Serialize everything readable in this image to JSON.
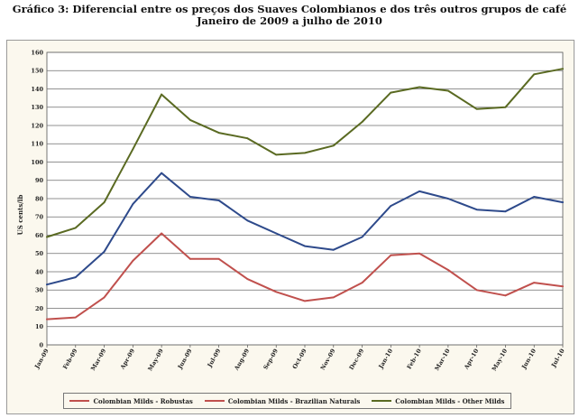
{
  "chart_data": {
    "type": "line",
    "title": "Gráfico 3:  Diferencial entre os preços dos Suaves Colombianos e dos três outros grupos de café",
    "subtitle": "Janeiro de 2009 a julho de 2010",
    "xlabel": "",
    "ylabel": "US cents/lb",
    "ylim": [
      0,
      160
    ],
    "yticks": [
      0,
      10,
      20,
      30,
      40,
      50,
      60,
      70,
      80,
      90,
      100,
      110,
      120,
      130,
      140,
      150,
      160
    ],
    "grid": true,
    "legend_position": "bottom",
    "categories": [
      "Jan-09",
      "Feb-09",
      "Mar-09",
      "Apr-09",
      "May-09",
      "Jun-09",
      "Jul-09",
      "Aug-09",
      "Sep-09",
      "Oct-09",
      "Nov-09",
      "Dec-09",
      "Jan-10",
      "Feb-10",
      "Mar-10",
      "Apr-10",
      "May-10",
      "Jun-10",
      "Jul-10"
    ],
    "series": [
      {
        "name": "Colombian Milds - Robustas",
        "color": "#c0504d",
        "values": [
          14,
          15,
          26,
          46,
          61,
          47,
          47,
          36,
          29,
          24,
          26,
          34,
          49,
          50,
          41,
          30,
          27,
          34,
          32
        ]
      },
      {
        "name": "Colombian Milds - Brazilian Naturals",
        "color": "#2e4a8b",
        "values": [
          33,
          37,
          51,
          77,
          94,
          81,
          79,
          68,
          61,
          54,
          52,
          59,
          76,
          84,
          80,
          74,
          73,
          81,
          78
        ]
      },
      {
        "name": "Colombian Milds - Other Milds",
        "color": "#5a6a22",
        "values": [
          59,
          64,
          78,
          107,
          137,
          123,
          116,
          113,
          104,
          105,
          109,
          122,
          138,
          141,
          139,
          129,
          130,
          148,
          151
        ]
      }
    ]
  },
  "legend": {
    "items": [
      "Colombian Milds - Robustas",
      "Colombian Milds - Brazilian Naturals",
      "Colombian Milds - Other Milds"
    ],
    "colors": [
      "#c0504d",
      "#c0504d",
      "#5a6a22"
    ]
  }
}
